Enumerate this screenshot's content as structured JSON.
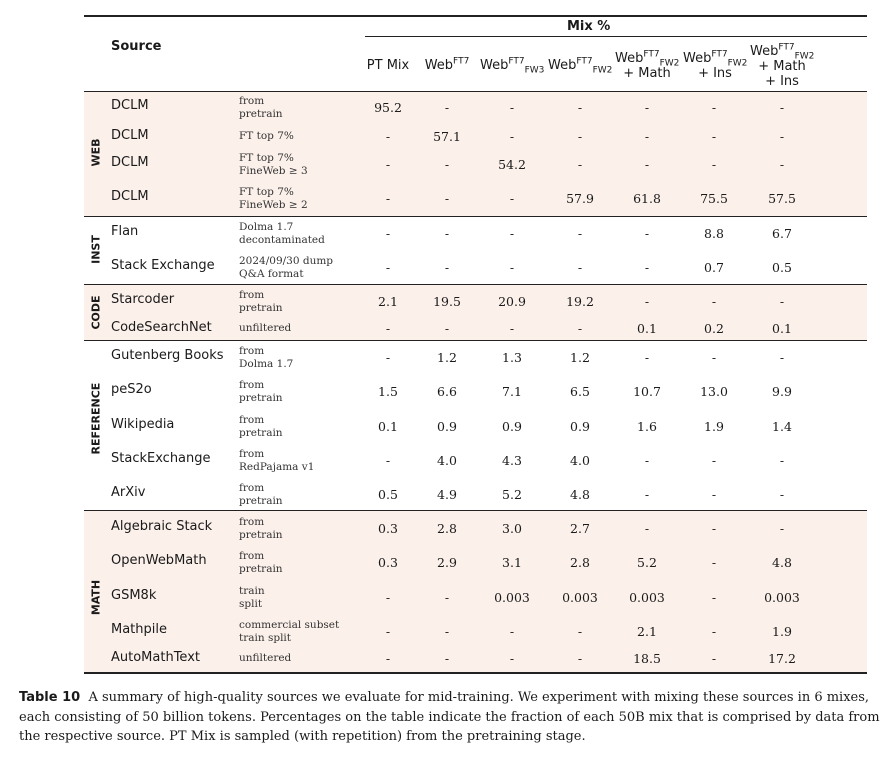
{
  "header": {
    "mix_label": "Mix %",
    "source_label": "Source",
    "columns": [
      {
        "base": "PT Mix",
        "sup": "",
        "sub": "",
        "extra": ""
      },
      {
        "base": "Web",
        "sup": "FT7",
        "sub": "",
        "extra": ""
      },
      {
        "base": "Web",
        "sup": "FT7",
        "sub": "FW3",
        "extra": ""
      },
      {
        "base": "Web",
        "sup": "FT7",
        "sub": "FW2",
        "extra": ""
      },
      {
        "base": "Web",
        "sup": "FT7",
        "sub": "FW2",
        "extra": "+ Math"
      },
      {
        "base": "Web",
        "sup": "FT7",
        "sub": "FW2",
        "extra": "+ Ins"
      },
      {
        "base": "Web",
        "sup": "FT7",
        "sub": "FW2",
        "extra": "+ Math",
        "extra2": "+ Ins"
      }
    ]
  },
  "groups": [
    "WEB",
    "INST",
    "CODE",
    "REFERENCE",
    "MATH"
  ],
  "rows": [
    {
      "source": "DCLM",
      "desc1": "from",
      "desc2": "pretrain",
      "values": [
        "95.2",
        "-",
        "-",
        "-",
        "-",
        "-",
        "-"
      ]
    },
    {
      "source": "DCLM",
      "desc1": "FT top 7%",
      "desc2": "",
      "values": [
        "-",
        "57.1",
        "-",
        "-",
        "-",
        "-",
        "-"
      ]
    },
    {
      "source": "DCLM",
      "desc1": "FT top 7%",
      "desc2": "FineWeb ≥ 3",
      "values": [
        "-",
        "-",
        "54.2",
        "-",
        "-",
        "-",
        "-"
      ]
    },
    {
      "source": "DCLM",
      "desc1": "FT top 7%",
      "desc2": "FineWeb ≥ 2",
      "values": [
        "-",
        "-",
        "-",
        "57.9",
        "61.8",
        "75.5",
        "57.5"
      ]
    },
    {
      "source": "Flan",
      "desc1": "Dolma 1.7",
      "desc2": "decontaminated",
      "values": [
        "-",
        "-",
        "-",
        "-",
        "-",
        "8.8",
        "6.7"
      ]
    },
    {
      "source": "Stack Exchange",
      "desc1": "2024/09/30 dump",
      "desc2": "Q&A format",
      "values": [
        "-",
        "-",
        "-",
        "-",
        "-",
        "0.7",
        "0.5"
      ]
    },
    {
      "source": "Starcoder",
      "desc1": "from",
      "desc2": "pretrain",
      "values": [
        "2.1",
        "19.5",
        "20.9",
        "19.2",
        "-",
        "-",
        "-"
      ]
    },
    {
      "source": "CodeSearchNet",
      "desc1": "unfiltered",
      "desc2": "",
      "values": [
        "-",
        "-",
        "-",
        "-",
        "0.1",
        "0.2",
        "0.1"
      ]
    },
    {
      "source": "Gutenberg Books",
      "desc1": "from",
      "desc2": "Dolma 1.7",
      "values": [
        "-",
        "1.2",
        "1.3",
        "1.2",
        "-",
        "-",
        "-"
      ]
    },
    {
      "source": "peS2o",
      "desc1": "from",
      "desc2": "pretrain",
      "values": [
        "1.5",
        "6.6",
        "7.1",
        "6.5",
        "10.7",
        "13.0",
        "9.9"
      ]
    },
    {
      "source": "Wikipedia",
      "desc1": "from",
      "desc2": "pretrain",
      "values": [
        "0.1",
        "0.9",
        "0.9",
        "0.9",
        "1.6",
        "1.9",
        "1.4"
      ]
    },
    {
      "source": "StackExchange",
      "desc1": "from",
      "desc2": "RedPajama v1",
      "values": [
        "-",
        "4.0",
        "4.3",
        "4.0",
        "-",
        "-",
        "-"
      ]
    },
    {
      "source": "ArXiv",
      "desc1": "from",
      "desc2": "pretrain",
      "values": [
        "0.5",
        "4.9",
        "5.2",
        "4.8",
        "-",
        "-",
        "-"
      ]
    },
    {
      "source": "Algebraic Stack",
      "desc1": "from",
      "desc2": "pretrain",
      "values": [
        "0.3",
        "2.8",
        "3.0",
        "2.7",
        "-",
        "-",
        "-"
      ]
    },
    {
      "source": "OpenWebMath",
      "desc1": "from",
      "desc2": "pretrain",
      "values": [
        "0.3",
        "2.9",
        "3.1",
        "2.8",
        "5.2",
        "-",
        "4.8"
      ]
    },
    {
      "source": "GSM8k",
      "desc1": "train",
      "desc2": "split",
      "values": [
        "-",
        "-",
        "0.003",
        "0.003",
        "0.003",
        "-",
        "0.003"
      ]
    },
    {
      "source": "Mathpile",
      "desc1": "commercial subset",
      "desc2": "train split",
      "values": [
        "-",
        "-",
        "-",
        "-",
        "2.1",
        "-",
        "1.9"
      ]
    },
    {
      "source": "AutoMathText",
      "desc1": "unfiltered",
      "desc2": "",
      "values": [
        "-",
        "-",
        "-",
        "-",
        "18.5",
        "-",
        "17.2"
      ]
    }
  ],
  "caption": {
    "label": "Table 10",
    "text": "A summary of high-quality sources we evaluate for mid-training. We experiment with mixing these sources in 6 mixes, each consisting of 50 billion tokens. Percentages on the table indicate the fraction of each 50B mix that is comprised by data from the respective source. PT Mix is sampled (with repetition) from the pretraining stage."
  }
}
